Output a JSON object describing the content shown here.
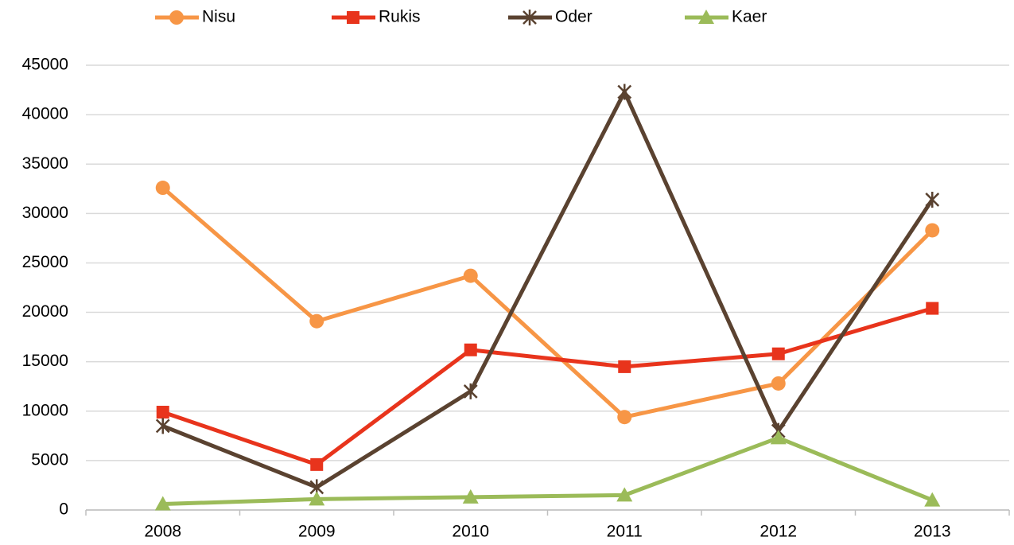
{
  "chart_data": {
    "type": "line",
    "categories": [
      "2008",
      "2009",
      "2010",
      "2011",
      "2012",
      "2013"
    ],
    "series": [
      {
        "name": "Nisu",
        "color": "#f79646",
        "marker": "circle",
        "values": [
          32600,
          19100,
          23700,
          9400,
          12800,
          28300
        ]
      },
      {
        "name": "Rukis",
        "color": "#e8341c",
        "marker": "square",
        "values": [
          9900,
          4600,
          16200,
          14500,
          15800,
          20400
        ]
      },
      {
        "name": "Oder",
        "color": "#5a4230",
        "marker": "star",
        "values": [
          8500,
          2300,
          12000,
          42300,
          8000,
          31400
        ]
      },
      {
        "name": "Kaer",
        "color": "#9bbb59",
        "marker": "triangle",
        "values": [
          600,
          1100,
          1300,
          1500,
          7300,
          1000
        ]
      }
    ],
    "ylim": [
      0,
      45000
    ],
    "yticks": [
      0,
      5000,
      10000,
      15000,
      20000,
      25000,
      30000,
      35000,
      40000,
      45000
    ],
    "grid": true,
    "legend": "top"
  }
}
